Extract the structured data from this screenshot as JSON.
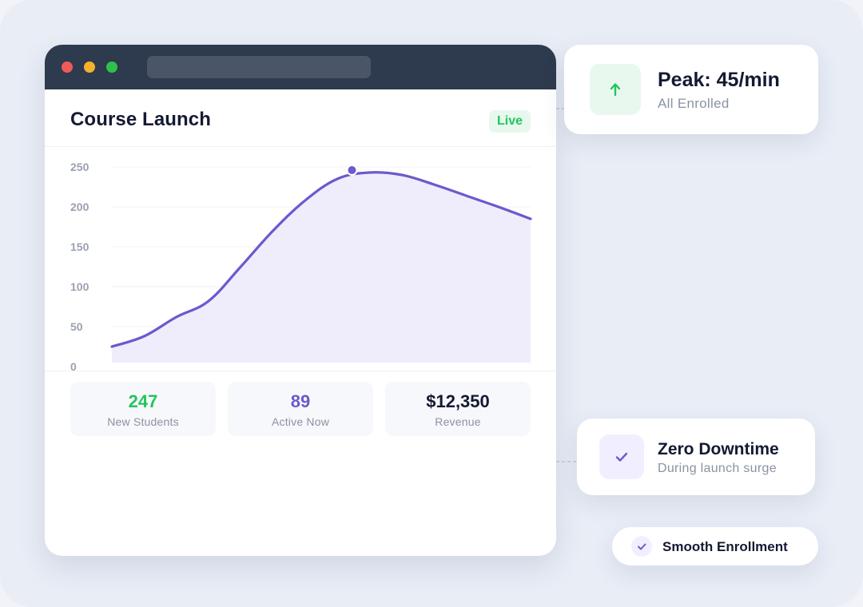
{
  "window": {
    "title": "Course Launch",
    "badge": "Live"
  },
  "stats": [
    {
      "value": "247",
      "label": "New Students",
      "color": "#22c55e"
    },
    {
      "value": "89",
      "label": "Active Now",
      "color": "#6a5acd"
    },
    {
      "value": "$12,350",
      "label": "Revenue",
      "color": "#141a33"
    }
  ],
  "peak_card": {
    "title": "Peak: 45/min",
    "subtitle": "All Enrolled",
    "icon": "arrow-up-icon"
  },
  "zero_card": {
    "title": "Zero Downtime",
    "subtitle": "During launch surge",
    "icon": "check-icon"
  },
  "pill": {
    "label": "Smooth Enrollment",
    "icon": "check-icon"
  },
  "colors": {
    "line": "#6a5acd",
    "fill": "#efedfb",
    "success": "#22c55e"
  },
  "chart_data": {
    "type": "area",
    "x": [
      0,
      1,
      2,
      3,
      4,
      5,
      6,
      7,
      8,
      9,
      10,
      11,
      12,
      13
    ],
    "values": [
      25,
      38,
      62,
      82,
      125,
      170,
      208,
      235,
      243,
      240,
      228,
      214,
      200,
      185
    ],
    "highlight_index": 8,
    "yticks": [
      "0",
      "50",
      "100",
      "150",
      "200",
      "250"
    ],
    "ylim": [
      0,
      250
    ],
    "grid": true,
    "title": "",
    "xlabel": "",
    "ylabel": ""
  }
}
